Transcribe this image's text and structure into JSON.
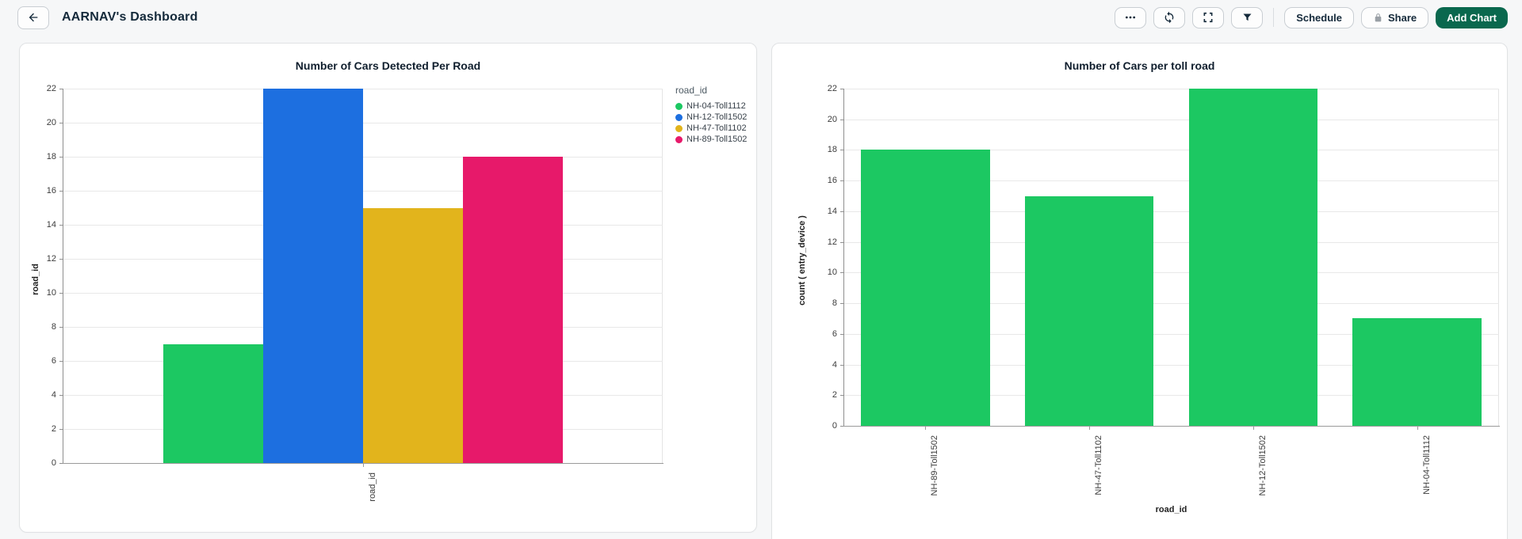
{
  "header": {
    "title": "AARNAV's Dashboard",
    "back_icon": "arrow-left",
    "more_icon": "ellipsis",
    "refresh_icon": "refresh-arrows",
    "fullscreen_icon": "fullscreen-brackets",
    "filter_icon": "filter-funnel",
    "lock_icon": "lock",
    "buttons": {
      "schedule": "Schedule",
      "share": "Share",
      "add_chart": "Add Chart"
    }
  },
  "colors": {
    "page_bg": "#f6f7f8",
    "card_bg": "#ffffff",
    "primary_button": "#0a684e",
    "icon_dark": "#14293a",
    "lock_gray": "#9aa0a6",
    "bar_green": "#1cc862",
    "bar_blue": "#1d6fe0",
    "bar_gold": "#e2b41c",
    "bar_pink": "#e7196a"
  },
  "chart_data": [
    {
      "type": "bar",
      "title": "Number of Cars Detected Per Road",
      "xlabel": "",
      "ylabel": "road_id",
      "x_tick_labels": [
        "road_id"
      ],
      "ylim": [
        0,
        22
      ],
      "ytick_step": 2,
      "yticks": [
        0,
        2,
        4,
        6,
        8,
        10,
        12,
        14,
        16,
        18,
        20,
        22
      ],
      "grid": true,
      "legend": {
        "title": "road_id",
        "position": "right",
        "entries": [
          "NH-04-Toll1112",
          "NH-12-Toll1502",
          "NH-47-Toll1102",
          "NH-89-Toll1502"
        ]
      },
      "series": [
        {
          "name": "NH-04-Toll1112",
          "value": 7,
          "color": "#1cc862"
        },
        {
          "name": "NH-12-Toll1502",
          "value": 22,
          "color": "#1d6fe0"
        },
        {
          "name": "NH-47-Toll1102",
          "value": 15,
          "color": "#e2b41c"
        },
        {
          "name": "NH-89-Toll1502",
          "value": 18,
          "color": "#e7196a"
        }
      ]
    },
    {
      "type": "bar",
      "title": "Number of Cars per toll road",
      "xlabel": "road_id",
      "ylabel": "count ( entry_device )",
      "ylim": [
        0,
        22
      ],
      "ytick_step": 2,
      "yticks": [
        0,
        2,
        4,
        6,
        8,
        10,
        12,
        14,
        16,
        18,
        20,
        22
      ],
      "grid": true,
      "bar_color": "#1cc862",
      "categories": [
        "NH-89-Toll1502",
        "NH-47-Toll1102",
        "NH-12-Toll1502",
        "NH-04-Toll1112"
      ],
      "values": [
        18,
        15,
        22,
        7
      ]
    }
  ]
}
